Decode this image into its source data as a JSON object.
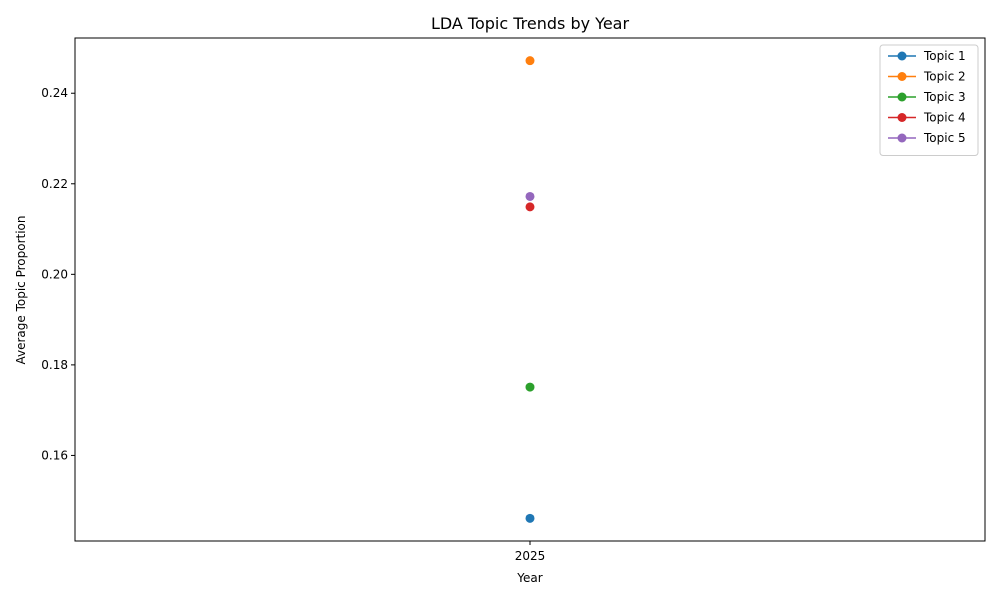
{
  "chart_data": {
    "type": "line",
    "title": "LDA Topic Trends by Year",
    "xlabel": "Year",
    "ylabel": "Average Topic Proportion",
    "x": [
      "2025"
    ],
    "series": [
      {
        "name": "Topic 1",
        "values": [
          0.1461
        ],
        "color": "#1f77b4"
      },
      {
        "name": "Topic 2",
        "values": [
          0.2472
        ],
        "color": "#ff7f0e"
      },
      {
        "name": "Topic 3",
        "values": [
          0.1751
        ],
        "color": "#2ca02c"
      },
      {
        "name": "Topic 4",
        "values": [
          0.2149
        ],
        "color": "#d62728"
      },
      {
        "name": "Topic 5",
        "values": [
          0.2172
        ],
        "color": "#9467bd"
      }
    ],
    "yticks": [
      0.16,
      0.18,
      0.2,
      0.22,
      0.24
    ],
    "ytick_labels": [
      "0.16",
      "0.18",
      "0.20",
      "0.22",
      "0.24"
    ],
    "ylim": [
      0.1411,
      0.2522
    ],
    "legend_position": "top-right",
    "grid": false
  }
}
